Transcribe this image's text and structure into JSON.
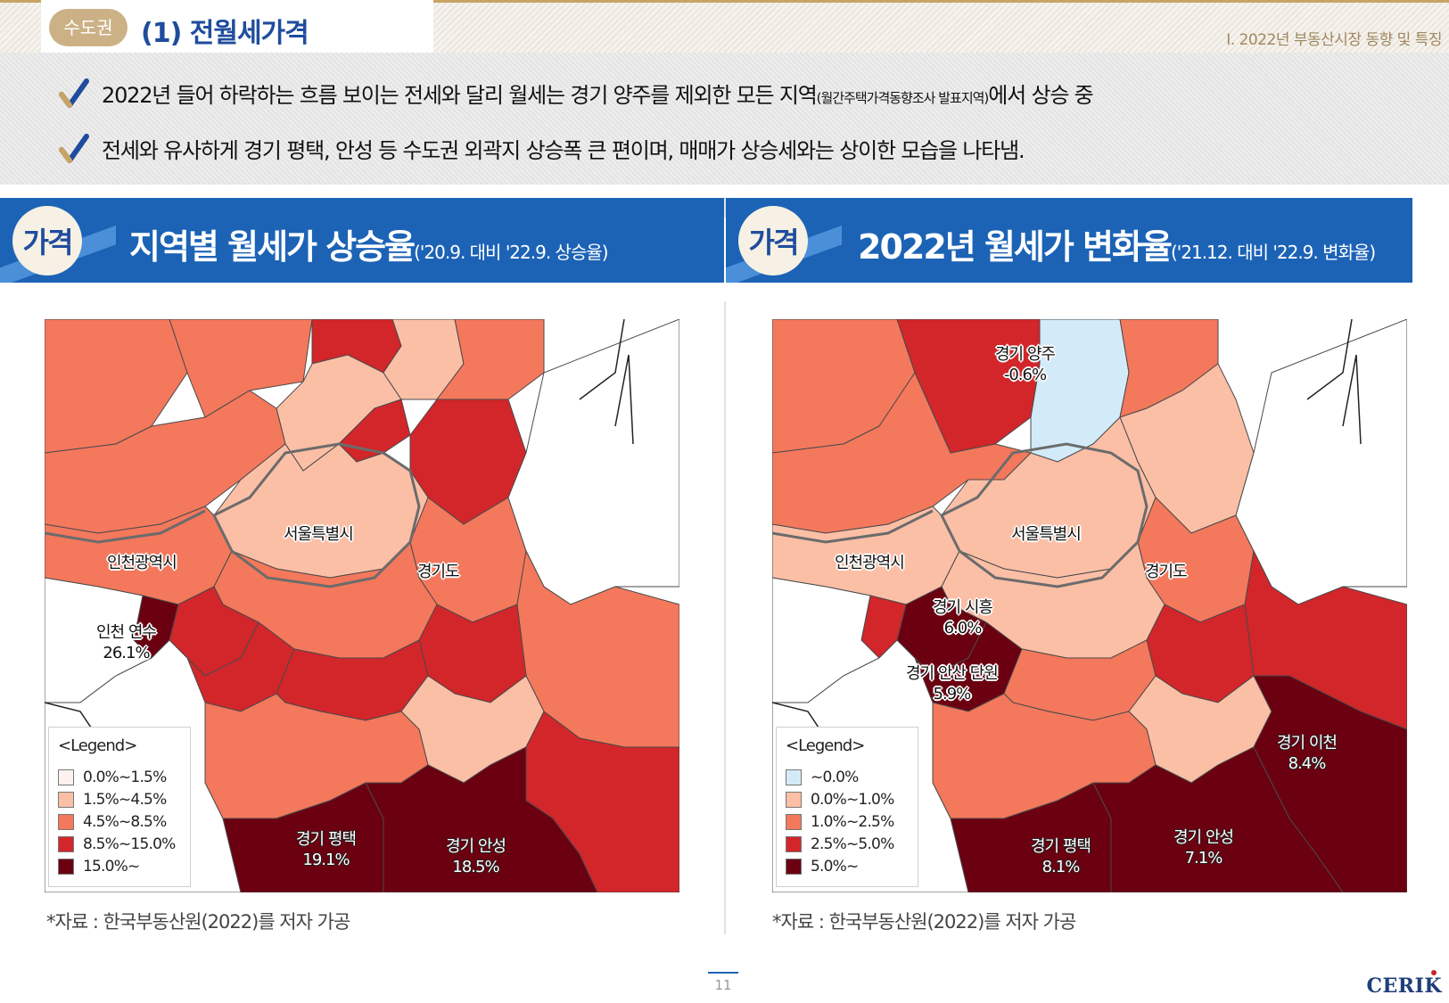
{
  "header": {
    "category": "수도권",
    "title": "(1) 전월세가격",
    "running_head": "Ⅰ. 2022년 부동산시장 동향 및 특징"
  },
  "bullets": [
    {
      "text_before": "2022년 들어 하락하는 흐름 보이는 전세와 달리 월세는 경기 양주를 제외한 모든 지역",
      "text_small": "(월간주택가격동향조사 발표지역)",
      "text_after": "에서 상승 중"
    },
    {
      "text_before": "전세와 유사하게 경기 평택, 안성 등 수도권 외곽지 상승폭 큰 편이며, 매매가 상승세와는 상이한 모습을 나타냄.",
      "text_small": "",
      "text_after": ""
    }
  ],
  "panels": [
    {
      "badge": "가격",
      "title": "지역별 월세가 상승율",
      "subtitle": "('20.9. 대비 '22.9. 상승율)",
      "region_labels": {
        "seoul": "서울특별시",
        "incheon": "인천광역시",
        "gyeonggi": "경기도"
      },
      "highlights": [
        {
          "name": "인천 연수",
          "value": "26.1%"
        },
        {
          "name": "경기 평택",
          "value": "19.1%"
        },
        {
          "name": "경기 안성",
          "value": "18.5%"
        }
      ],
      "legend": {
        "title": "<Legend>",
        "items": [
          {
            "label": "0.0%~1.5%",
            "color": "#fdf2ef"
          },
          {
            "label": "1.5%~4.5%",
            "color": "#fbbfa6"
          },
          {
            "label": "4.5%~8.5%",
            "color": "#f4785c"
          },
          {
            "label": "8.5%~15.0%",
            "color": "#d2262a"
          },
          {
            "label": "15.0%~",
            "color": "#6b0011"
          }
        ]
      },
      "source": "*자료 : 한국부동산원(2022)를 저자 가공"
    },
    {
      "badge": "가격",
      "title": "2022년 월세가 변화율",
      "subtitle": "('21.12. 대비 '22.9. 변화율)",
      "region_labels": {
        "seoul": "서울특별시",
        "incheon": "인천광역시",
        "gyeonggi": "경기도"
      },
      "highlights": [
        {
          "name": "경기 양주",
          "value": "-0.6%"
        },
        {
          "name": "경기 시흥",
          "value": "6.0%"
        },
        {
          "name": "경기 안산 단원",
          "value": "5.9%"
        },
        {
          "name": "경기 이천",
          "value": "8.4%"
        },
        {
          "name": "경기 평택",
          "value": "8.1%"
        },
        {
          "name": "경기 안성",
          "value": "7.1%"
        }
      ],
      "legend": {
        "title": "<Legend>",
        "items": [
          {
            "label": "~0.0%",
            "color": "#d3ebf9"
          },
          {
            "label": "0.0%~1.0%",
            "color": "#fbbfa6"
          },
          {
            "label": "1.0%~2.5%",
            "color": "#f4785c"
          },
          {
            "label": "2.5%~5.0%",
            "color": "#d2262a"
          },
          {
            "label": "5.0%~",
            "color": "#6b0011"
          }
        ]
      },
      "source": "*자료 : 한국부동산원(2022)를 저자 가공"
    }
  ],
  "footer": {
    "page_number": "11",
    "logo": "CERIK"
  },
  "colors": {
    "brand_blue": "#1c63b6",
    "title_blue": "#1f4c9d",
    "gold": "#cbb185",
    "check_blue": "#1f4c9d",
    "check_gold": "#c8a464"
  }
}
